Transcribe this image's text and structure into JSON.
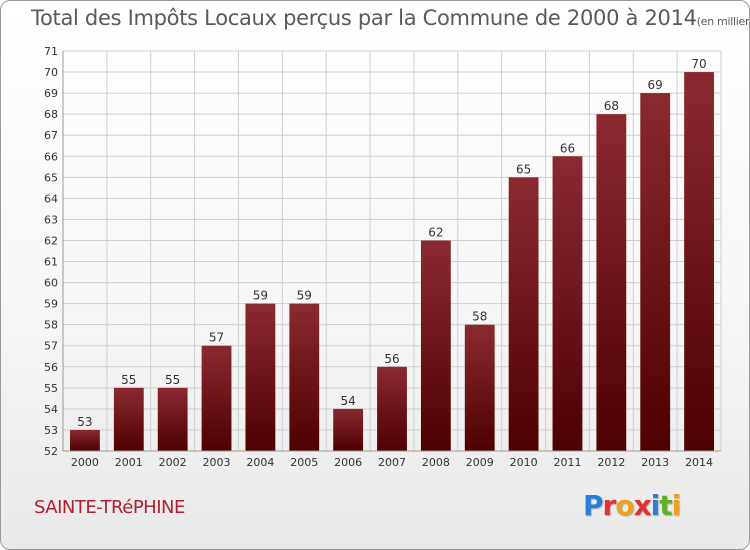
{
  "title": {
    "main": "Total des Impôts Locaux perçus par la Commune de 2000 à 2014",
    "unit": "(en milliers d'€)"
  },
  "commune": "SAINTE-TRéPHINE",
  "logo": {
    "text": "Proxiti",
    "letters": [
      {
        "ch": "P",
        "color": "#2a7fd4"
      },
      {
        "ch": "r",
        "color": "#e03030"
      },
      {
        "ch": "o",
        "color": "#f0a020"
      },
      {
        "ch": "x",
        "color": "#e03030"
      },
      {
        "ch": "i",
        "color": "#2a7fd4"
      },
      {
        "ch": "t",
        "color": "#60b030"
      },
      {
        "ch": "i",
        "color": "#f0a020"
      }
    ]
  },
  "colors": {
    "bar_top": "#8a2a30",
    "bar_bottom": "#4e0000",
    "grid": "#cfcfcf",
    "axis_text": "#333333"
  },
  "chart_data": {
    "type": "bar",
    "title": "Total des Impôts Locaux perçus par la Commune de 2000 à 2014",
    "xlabel": "",
    "ylabel": "",
    "ylim": [
      52,
      71
    ],
    "yticks": [
      52,
      53,
      54,
      55,
      56,
      57,
      58,
      59,
      60,
      61,
      62,
      63,
      64,
      65,
      66,
      67,
      68,
      69,
      70,
      71
    ],
    "grid": true,
    "categories": [
      "2000",
      "2001",
      "2002",
      "2003",
      "2004",
      "2005",
      "2006",
      "2007",
      "2008",
      "2009",
      "2010",
      "2011",
      "2012",
      "2013",
      "2014"
    ],
    "values": [
      53,
      55,
      55,
      57,
      59,
      59,
      54,
      56,
      62,
      58,
      65,
      66,
      68,
      69,
      70
    ],
    "data_labels": [
      "53",
      "55",
      "55",
      "57",
      "59",
      "59",
      "54",
      "56",
      "62",
      "58",
      "65",
      "66",
      "68",
      "69",
      "70"
    ]
  }
}
